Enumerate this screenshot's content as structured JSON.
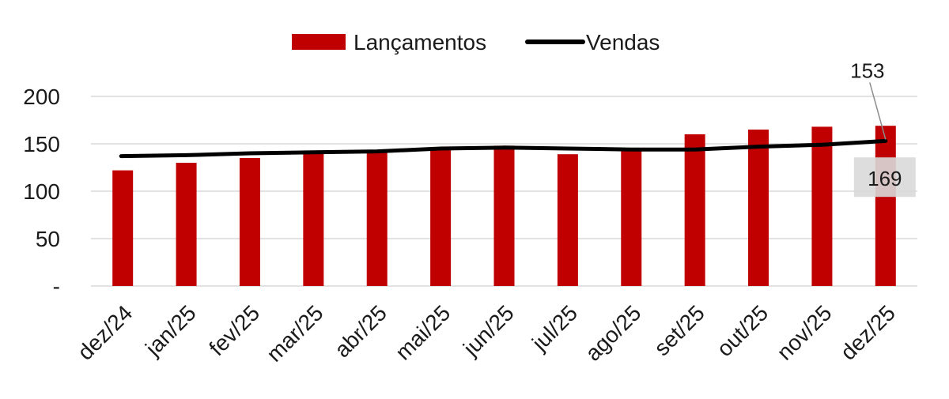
{
  "chart_data": {
    "type": "bar",
    "categories": [
      "dez/24",
      "jan/25",
      "fev/25",
      "mar/25",
      "abr/25",
      "mai/25",
      "jun/25",
      "jul/25",
      "ago/25",
      "set/25",
      "out/25",
      "nov/25",
      "dez/25"
    ],
    "series": [
      {
        "name": "Lançamentos",
        "kind": "bar",
        "color": "#c00000",
        "values": [
          122,
          130,
          135,
          140,
          142,
          146,
          148,
          139,
          144,
          160,
          165,
          168,
          169
        ]
      },
      {
        "name": "Vendas",
        "kind": "line",
        "color": "#000000",
        "values": [
          137,
          138,
          140,
          141,
          142,
          145,
          146,
          145,
          144,
          144,
          147,
          149,
          153
        ]
      }
    ],
    "y_ticks": [
      {
        "value": 0,
        "label": "-"
      },
      {
        "value": 50,
        "label": "50"
      },
      {
        "value": 100,
        "label": "100"
      },
      {
        "value": 150,
        "label": "150"
      },
      {
        "value": 200,
        "label": "200"
      }
    ],
    "ylim": [
      0,
      200
    ],
    "grid": true,
    "legend_position": "top-center",
    "annotations": [
      {
        "series": "Vendas",
        "category": "dez/25",
        "text": "153"
      },
      {
        "series": "Lançamentos",
        "category": "dez/25",
        "text": "169",
        "boxed": true
      }
    ],
    "xlabel": "",
    "ylabel": ""
  }
}
